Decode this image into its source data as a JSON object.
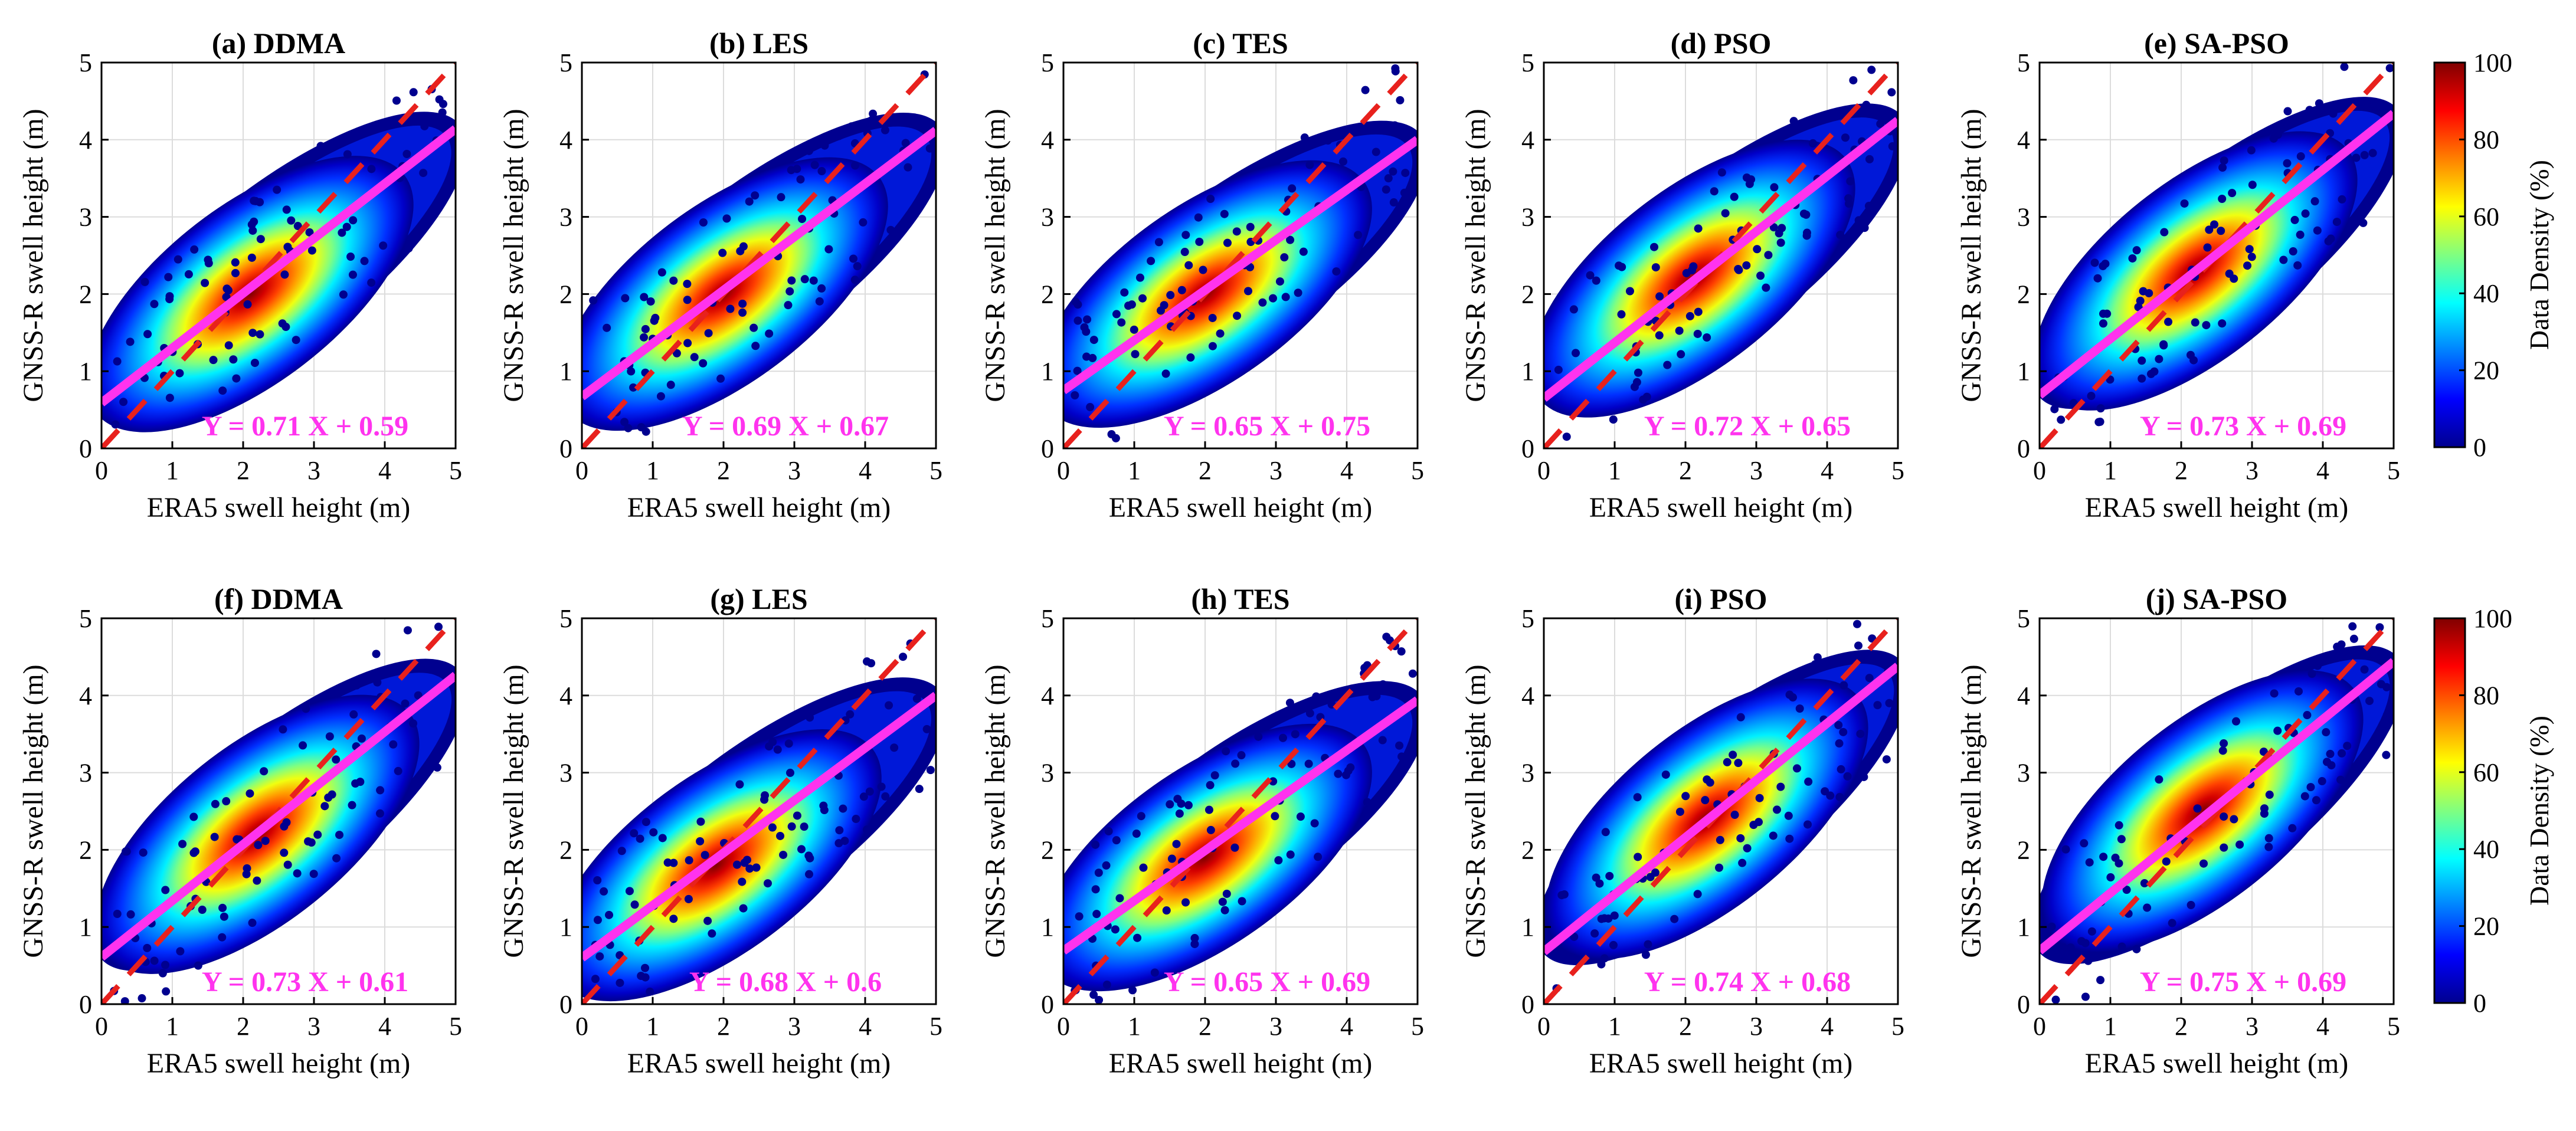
{
  "chart_data": [
    {
      "id": "a",
      "type": "scatter",
      "title": "(a) DDMA",
      "xlabel": "ERA5 swell height (m)",
      "ylabel": "GNSS-R swell height (m)",
      "xlim": [
        0,
        5
      ],
      "ylim": [
        0,
        5
      ],
      "xticks": [
        "0",
        "1",
        "2",
        "3",
        "4",
        "5"
      ],
      "yticks": [
        "0",
        "1",
        "2",
        "3",
        "4",
        "5"
      ],
      "grid": true,
      "fit": {
        "slope": 0.71,
        "intercept": 0.59,
        "label": "Y = 0.71 X + 0.59"
      },
      "reference_line": {
        "slope": 1,
        "intercept": 0
      },
      "density_center": [
        2.1,
        2.0
      ]
    },
    {
      "id": "b",
      "type": "scatter",
      "title": "(b) LES",
      "xlabel": "ERA5 swell height (m)",
      "ylabel": "GNSS-R swell height (m)",
      "xlim": [
        0,
        5
      ],
      "ylim": [
        0,
        5
      ],
      "xticks": [
        "0",
        "1",
        "2",
        "3",
        "4",
        "5"
      ],
      "yticks": [
        "0",
        "1",
        "2",
        "3",
        "4",
        "5"
      ],
      "grid": true,
      "fit": {
        "slope": 0.69,
        "intercept": 0.67,
        "label": "Y = 0.69 X + 0.67"
      },
      "reference_line": {
        "slope": 1,
        "intercept": 0
      },
      "density_center": [
        2.0,
        2.0
      ]
    },
    {
      "id": "c",
      "type": "scatter",
      "title": "(c) TES",
      "xlabel": "ERA5 swell height (m)",
      "ylabel": "GNSS-R swell height (m)",
      "xlim": [
        0,
        5
      ],
      "ylim": [
        0,
        5
      ],
      "xticks": [
        "0",
        "1",
        "2",
        "3",
        "4",
        "5"
      ],
      "yticks": [
        "0",
        "1",
        "2",
        "3",
        "4",
        "5"
      ],
      "grid": true,
      "fit": {
        "slope": 0.65,
        "intercept": 0.75,
        "label": "Y = 0.65 X + 0.75"
      },
      "reference_line": {
        "slope": 1,
        "intercept": 0
      },
      "density_center": [
        2.0,
        2.0
      ]
    },
    {
      "id": "d",
      "type": "scatter",
      "title": "(d) PSO",
      "xlabel": "ERA5 swell height (m)",
      "ylabel": "GNSS-R swell height (m)",
      "xlim": [
        0,
        5
      ],
      "ylim": [
        0,
        5
      ],
      "xticks": [
        "0",
        "1",
        "2",
        "3",
        "4",
        "5"
      ],
      "yticks": [
        "0",
        "1",
        "2",
        "3",
        "4",
        "5"
      ],
      "grid": true,
      "fit": {
        "slope": 0.72,
        "intercept": 0.65,
        "label": "Y = 0.72 X + 0.65"
      },
      "reference_line": {
        "slope": 1,
        "intercept": 0
      },
      "density_center": [
        2.1,
        2.2
      ]
    },
    {
      "id": "e",
      "type": "scatter",
      "title": "(e) SA-PSO",
      "xlabel": "ERA5 swell height (m)",
      "ylabel": "GNSS-R swell height (m)",
      "xlim": [
        0,
        5
      ],
      "ylim": [
        0,
        5
      ],
      "xticks": [
        "0",
        "1",
        "2",
        "3",
        "4",
        "5"
      ],
      "yticks": [
        "0",
        "1",
        "2",
        "3",
        "4",
        "5"
      ],
      "grid": true,
      "fit": {
        "slope": 0.73,
        "intercept": 0.69,
        "label": "Y = 0.73 X + 0.69"
      },
      "reference_line": {
        "slope": 1,
        "intercept": 0
      },
      "density_center": [
        2.2,
        2.3
      ]
    },
    {
      "id": "f",
      "type": "scatter",
      "title": "(f) DDMA",
      "xlabel": "ERA5 swell height (m)",
      "ylabel": "GNSS-R swell height (m)",
      "xlim": [
        0,
        5
      ],
      "ylim": [
        0,
        5
      ],
      "xticks": [
        "0",
        "1",
        "2",
        "3",
        "4",
        "5"
      ],
      "yticks": [
        "0",
        "1",
        "2",
        "3",
        "4",
        "5"
      ],
      "grid": true,
      "fit": {
        "slope": 0.73,
        "intercept": 0.61,
        "label": "Y = 0.73 X + 0.61"
      },
      "reference_line": {
        "slope": 1,
        "intercept": 0
      },
      "density_center": [
        2.2,
        2.2
      ]
    },
    {
      "id": "g",
      "type": "scatter",
      "title": "(g) LES",
      "xlabel": "ERA5 swell height (m)",
      "ylabel": "GNSS-R swell height (m)",
      "xlim": [
        0,
        5
      ],
      "ylim": [
        0,
        5
      ],
      "xticks": [
        "0",
        "1",
        "2",
        "3",
        "4",
        "5"
      ],
      "yticks": [
        "0",
        "1",
        "2",
        "3",
        "4",
        "5"
      ],
      "grid": true,
      "fit": {
        "slope": 0.68,
        "intercept": 0.6,
        "label": "Y = 0.68 X + 0.6"
      },
      "reference_line": {
        "slope": 1,
        "intercept": 0
      },
      "density_center": [
        1.9,
        1.8
      ]
    },
    {
      "id": "h",
      "type": "scatter",
      "title": "(h) TES",
      "xlabel": "ERA5 swell height (m)",
      "ylabel": "GNSS-R swell height (m)",
      "xlim": [
        0,
        5
      ],
      "ylim": [
        0,
        5
      ],
      "xticks": [
        "0",
        "1",
        "2",
        "3",
        "4",
        "5"
      ],
      "yticks": [
        "0",
        "1",
        "2",
        "3",
        "4",
        "5"
      ],
      "grid": true,
      "fit": {
        "slope": 0.65,
        "intercept": 0.69,
        "label": "Y = 0.65 X + 0.69"
      },
      "reference_line": {
        "slope": 1,
        "intercept": 0
      },
      "density_center": [
        2.0,
        1.9
      ]
    },
    {
      "id": "i",
      "type": "scatter",
      "title": "(i) PSO",
      "xlabel": "ERA5 swell height (m)",
      "ylabel": "GNSS-R swell height (m)",
      "xlim": [
        0,
        5
      ],
      "ylim": [
        0,
        5
      ],
      "xticks": [
        "0",
        "1",
        "2",
        "3",
        "4",
        "5"
      ],
      "yticks": [
        "0",
        "1",
        "2",
        "3",
        "4",
        "5"
      ],
      "grid": true,
      "fit": {
        "slope": 0.74,
        "intercept": 0.68,
        "label": "Y = 0.74 X + 0.68"
      },
      "reference_line": {
        "slope": 1,
        "intercept": 0
      },
      "density_center": [
        2.3,
        2.4
      ]
    },
    {
      "id": "j",
      "type": "scatter",
      "title": "(j) SA-PSO",
      "xlabel": "ERA5 swell height (m)",
      "ylabel": "GNSS-R swell height (m)",
      "xlim": [
        0,
        5
      ],
      "ylim": [
        0,
        5
      ],
      "xticks": [
        "0",
        "1",
        "2",
        "3",
        "4",
        "5"
      ],
      "yticks": [
        "0",
        "1",
        "2",
        "3",
        "4",
        "5"
      ],
      "grid": true,
      "fit": {
        "slope": 0.75,
        "intercept": 0.69,
        "label": "Y = 0.75 X + 0.69"
      },
      "reference_line": {
        "slope": 1,
        "intercept": 0
      },
      "density_center": [
        2.3,
        2.5
      ]
    }
  ],
  "colorbars": [
    {
      "label": "Data Density (%)",
      "range": [
        0,
        100
      ],
      "ticks": [
        "0",
        "20",
        "40",
        "60",
        "80",
        "100"
      ]
    },
    {
      "label": "Data Density (%)",
      "range": [
        0,
        100
      ],
      "ticks": [
        "0",
        "20",
        "40",
        "60",
        "80",
        "100"
      ]
    }
  ],
  "colors": {
    "fit_line": "#ff33ee",
    "reference_line": "#e8211d",
    "grid": "#dcdcdc",
    "axis": "#000000",
    "density_scale": [
      "#00008f",
      "#0000ff",
      "#0080ff",
      "#00ffff",
      "#80ff80",
      "#ffff00",
      "#ff8000",
      "#ff0000",
      "#800000"
    ]
  }
}
